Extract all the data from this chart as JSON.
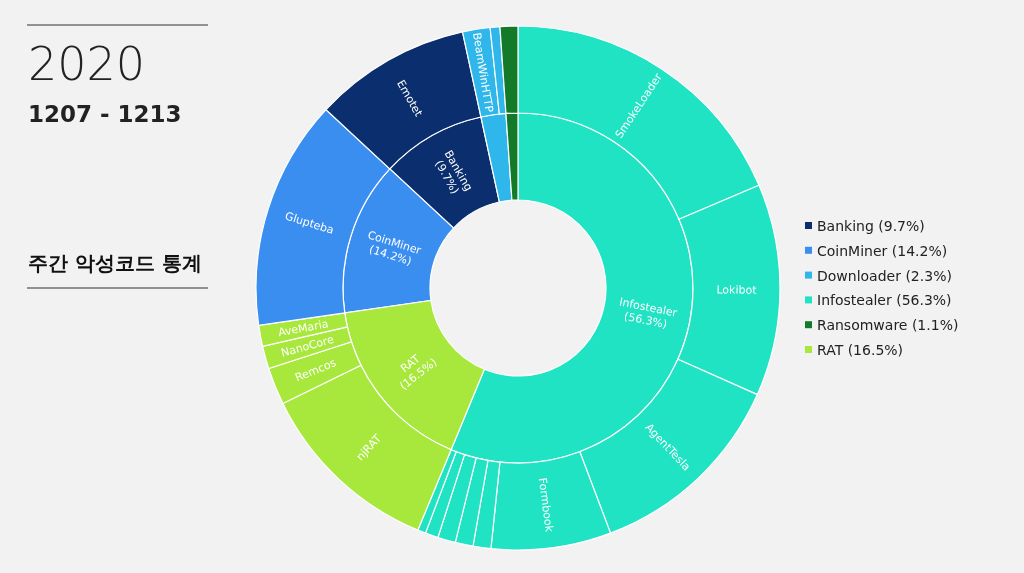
{
  "chart_data": [
    {
      "type": "donut",
      "title": "2020",
      "subtitle": "1207 - 1213",
      "annotations": [
        "주간 악성코드 통계"
      ],
      "categories": [
        "Banking (9.7%)",
        "CoinMiner (14.2%)",
        "Downloader (2.3%)",
        "Infostealer (56.3%)",
        "Ransomware (1.1%)",
        "RAT (16.5%)"
      ],
      "values": [
        9.7,
        14.2,
        2.3,
        56.3,
        1.1,
        16.5
      ],
      "colors": [
        "#0b2f6e",
        "#3a8ef0",
        "#2fb6ea",
        "#20e3c3",
        "#137a2a",
        "#a8e83c"
      ],
      "legend": "right"
    },
    {
      "type": "donut",
      "categories": [
        "SmokeLoader",
        "Lokibot",
        "AgentTesla",
        "Formbook",
        null,
        null,
        null,
        null,
        null,
        "njRAT",
        "Remcos",
        "NanoCore",
        "AveMaria",
        "Glupteba",
        "Emotet",
        "BeamWinHTTP",
        null,
        null
      ],
      "values": [
        18.6,
        13.1,
        12.6,
        7.4,
        1.1,
        1.1,
        1.1,
        0.8,
        0.5,
        11.5,
        2.3,
        1.4,
        1.3,
        14.2,
        9.7,
        1.7,
        0.6,
        1.1
      ],
      "colors": [
        "#20e3c3",
        "#20e3c3",
        "#20e3c3",
        "#20e3c3",
        "#20e3c3",
        "#20e3c3",
        "#20e3c3",
        "#20e3c3",
        "#20e3c3",
        "#a8e83c",
        "#a8e83c",
        "#a8e83c",
        "#a8e83c",
        "#3a8ef0",
        "#0b2f6e",
        "#2fb6ea",
        "#2fb6ea",
        "#137a2a"
      ]
    }
  ]
}
